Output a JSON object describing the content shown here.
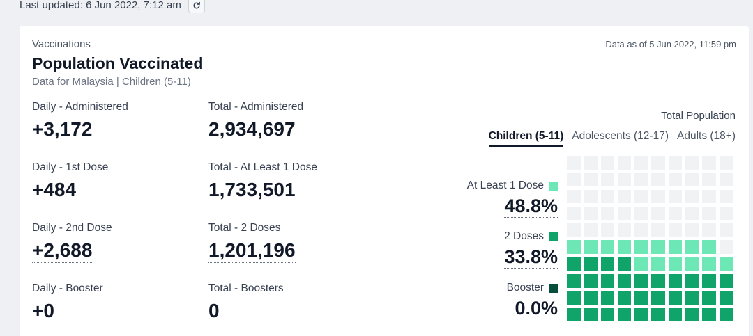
{
  "top": {
    "last_updated": "Last updated: 6 Jun 2022, 7:12 am"
  },
  "card": {
    "eyebrow": "Vaccinations",
    "title": "Population Vaccinated",
    "subtitle": "Data for Malaysia | Children (5-11)",
    "data_as_of": "Data as of 5 Jun 2022, 11:59 pm"
  },
  "stats": {
    "daily_administered": {
      "label": "Daily - Administered",
      "value": "+3,172"
    },
    "total_administered": {
      "label": "Total - Administered",
      "value": "2,934,697"
    },
    "daily_first": {
      "label": "Daily - 1st Dose",
      "value": "+484"
    },
    "total_first": {
      "label": "Total - At Least 1 Dose",
      "value": "1,733,501"
    },
    "daily_second": {
      "label": "Daily - 2nd Dose",
      "value": "+2,688"
    },
    "total_second": {
      "label": "Total - 2 Doses",
      "value": "1,201,196"
    },
    "daily_booster": {
      "label": "Daily - Booster",
      "value": "+0"
    },
    "total_booster": {
      "label": "Total - Boosters",
      "value": "0"
    }
  },
  "population": {
    "heading": "Total Population",
    "tabs": [
      "Children (5-11)",
      "Adolescents (12-17)",
      "Adults (18+)"
    ],
    "active_tab": "Children (5-11)"
  },
  "legend": {
    "at_least_one": {
      "label": "At Least 1 Dose",
      "pct": "48.8%",
      "color": "#6ee7b7"
    },
    "two_doses": {
      "label": "2 Doses",
      "pct": "33.8%",
      "color": "#10a36a"
    },
    "booster": {
      "label": "Booster",
      "pct": "0.0%",
      "color": "#064e3b"
    }
  },
  "waffle": {
    "at_least_one_pct": 48.8,
    "two_doses_pct": 33.8,
    "booster_pct": 0.0,
    "colors": {
      "empty": "#f1f2f4",
      "one": "#6ee7b7",
      "two": "#10a36a",
      "booster": "#064e3b"
    }
  }
}
